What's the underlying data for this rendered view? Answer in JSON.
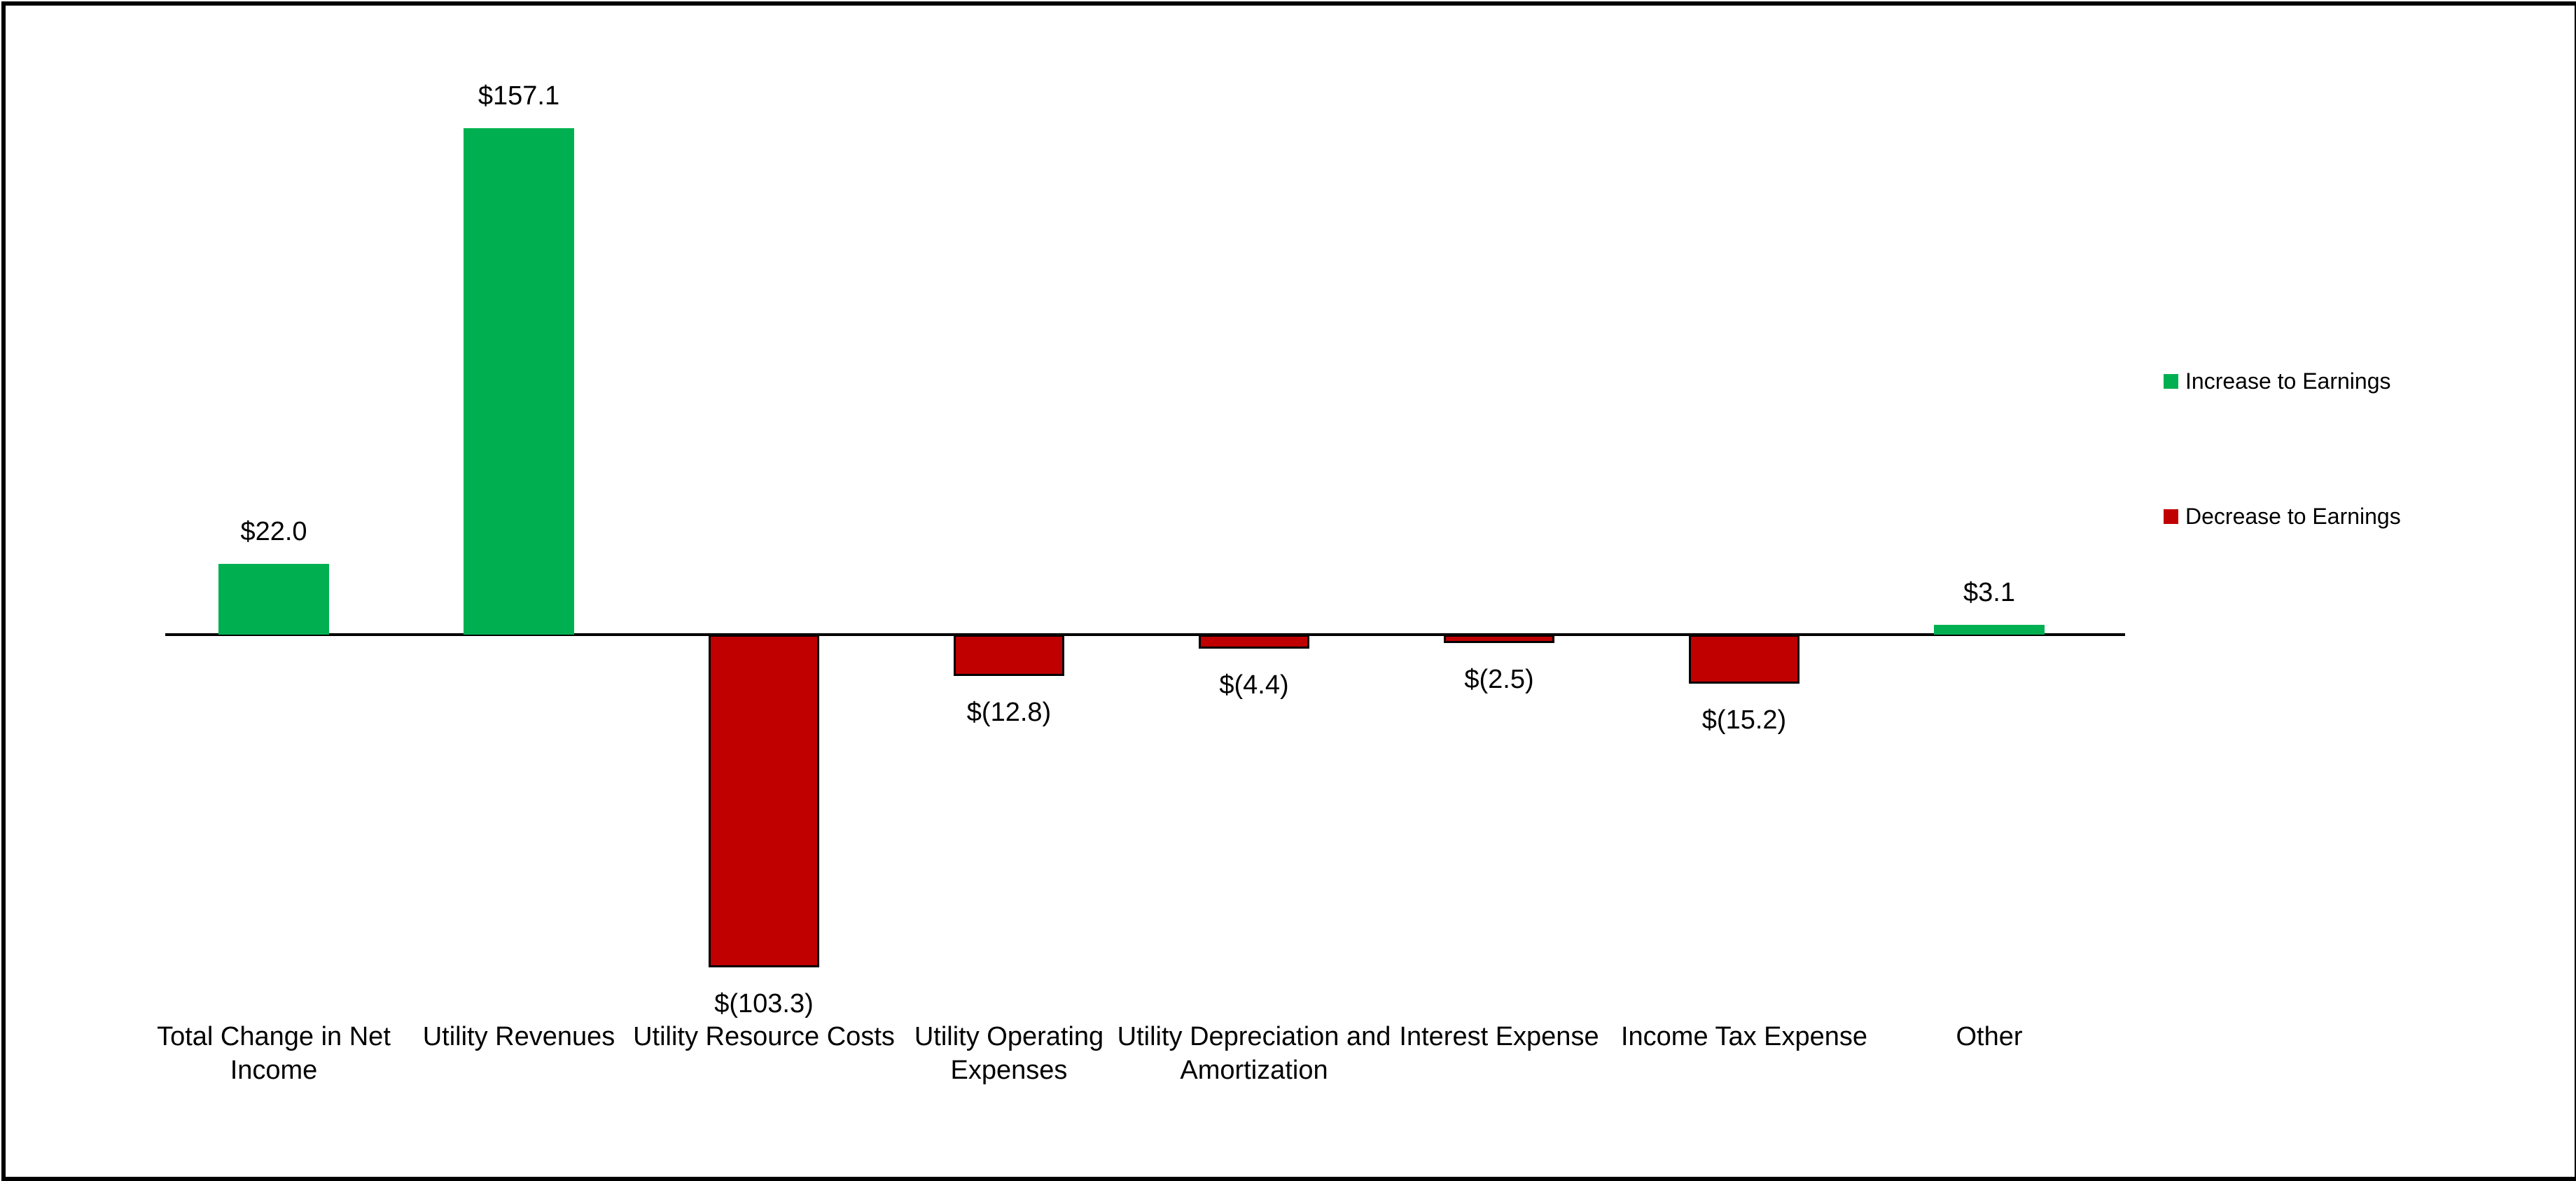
{
  "chart_data": {
    "type": "bar",
    "title": "",
    "xlabel": "",
    "ylabel": "",
    "grid": false,
    "ylim": [
      -110,
      165
    ],
    "axis_baseline_value": 0,
    "categories": [
      "Total Change in Net Income",
      "Utility Revenues",
      "Utility Resource Costs",
      "Utility Operating Expenses",
      "Utility Depreciation and Amortization",
      "Interest Expense",
      "Income Tax Expense",
      "Other"
    ],
    "values": [
      22.0,
      157.1,
      -103.3,
      -12.8,
      -4.4,
      -2.5,
      -15.2,
      3.1
    ],
    "data_labels": [
      "$22.0",
      "$157.1",
      "$(103.3)",
      "$(12.8)",
      "$(4.4)",
      "$(2.5)",
      "$(15.2)",
      "$3.1"
    ],
    "bar_colors": [
      "#00B050",
      "#00B050",
      "#C00000",
      "#C00000",
      "#C00000",
      "#C00000",
      "#C00000",
      "#00B050"
    ],
    "legend": {
      "position": "right",
      "items": [
        {
          "label": "Increase to Earnings",
          "color": "#00B050"
        },
        {
          "label": "Decrease to Earnings",
          "color": "#C00000"
        }
      ]
    },
    "colors": {
      "increase": "#00B050",
      "decrease": "#C00000",
      "axis": "#000000",
      "frame_border": "#000000",
      "background": "#ffffff"
    }
  }
}
